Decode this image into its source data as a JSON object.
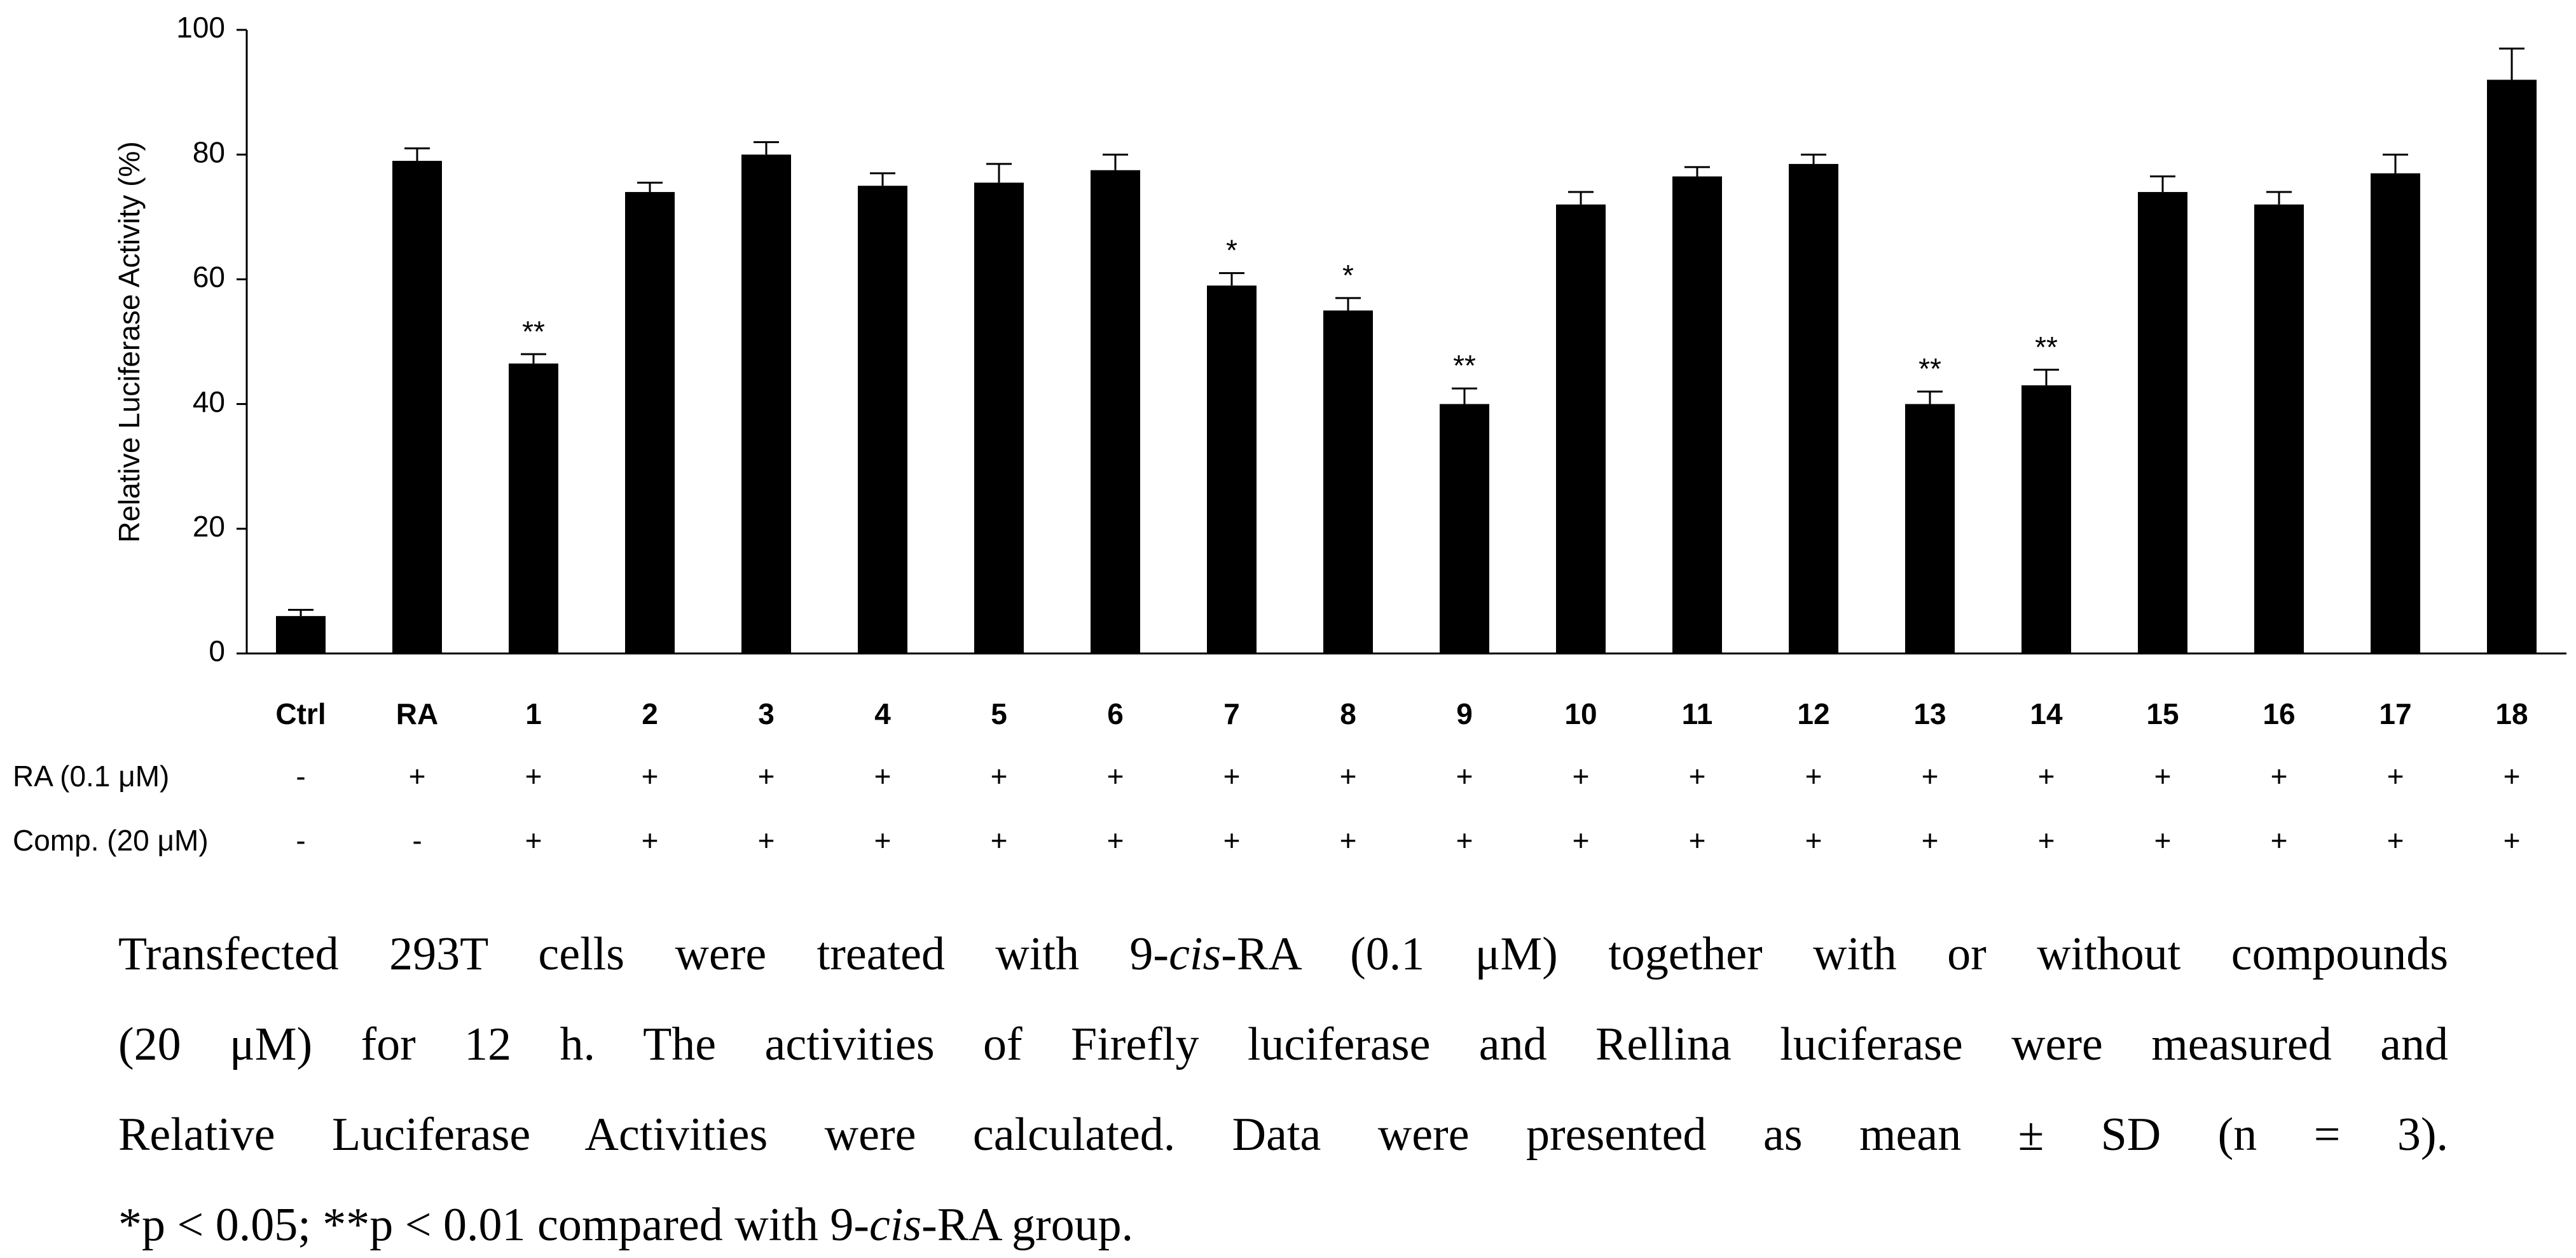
{
  "chart_data": {
    "type": "bar",
    "y_label": "Relative Luciferase Activity (%)",
    "categories": [
      "Ctrl",
      "RA",
      "1",
      "2",
      "3",
      "4",
      "5",
      "6",
      "7",
      "8",
      "9",
      "10",
      "11",
      "12",
      "13",
      "14",
      "15",
      "16",
      "17",
      "18"
    ],
    "values": [
      6,
      79,
      46.5,
      74,
      80,
      75,
      75.5,
      77.5,
      59,
      55,
      40,
      72,
      76.5,
      78.5,
      40,
      43,
      74,
      72,
      77,
      92
    ],
    "errors": [
      1,
      2,
      1.5,
      1.5,
      2,
      2,
      3,
      2.5,
      2,
      2,
      2.5,
      2,
      1.5,
      1.5,
      2,
      2.5,
      2.5,
      2,
      3,
      5
    ],
    "significance": [
      null,
      null,
      "**",
      null,
      null,
      null,
      null,
      null,
      "*",
      "*",
      "**",
      null,
      null,
      null,
      "**",
      "**",
      null,
      null,
      null,
      null
    ],
    "color": "#000000",
    "ylim": [
      0,
      100
    ],
    "yticks": [
      0,
      20,
      40,
      60,
      80,
      100
    ],
    "grid": false,
    "treatment_rows": [
      {
        "label": "RA (0.1 μM)",
        "marks": [
          "-",
          "+",
          "+",
          "+",
          "+",
          "+",
          "+",
          "+",
          "+",
          "+",
          "+",
          "+",
          "+",
          "+",
          "+",
          "+",
          "+",
          "+",
          "+",
          "+"
        ]
      },
      {
        "label": "Comp. (20 μM)",
        "marks": [
          "-",
          "-",
          "+",
          "+",
          "+",
          "+",
          "+",
          "+",
          "+",
          "+",
          "+",
          "+",
          "+",
          "+",
          "+",
          "+",
          "+",
          "+",
          "+",
          "+"
        ]
      }
    ]
  },
  "caption": [
    [
      {
        "text": "Transfected 293T cells were treated with 9-"
      },
      {
        "text": "cis",
        "italic": true
      },
      {
        "text": "-RA (0.1 μM) together with or without compounds"
      }
    ],
    [
      {
        "text": "(20 μM) for 12 h. The activities of Firefly luciferase and Rellina luciferase were measured and"
      }
    ],
    [
      {
        "text": "Relative Luciferase Activities were calculated. Data were presented as mean ± SD (n = 3)."
      }
    ],
    [
      {
        "text": "*p < 0.05; **p < 0.01 compared with 9-"
      },
      {
        "text": "cis",
        "italic": true
      },
      {
        "text": "-RA group."
      }
    ]
  ]
}
